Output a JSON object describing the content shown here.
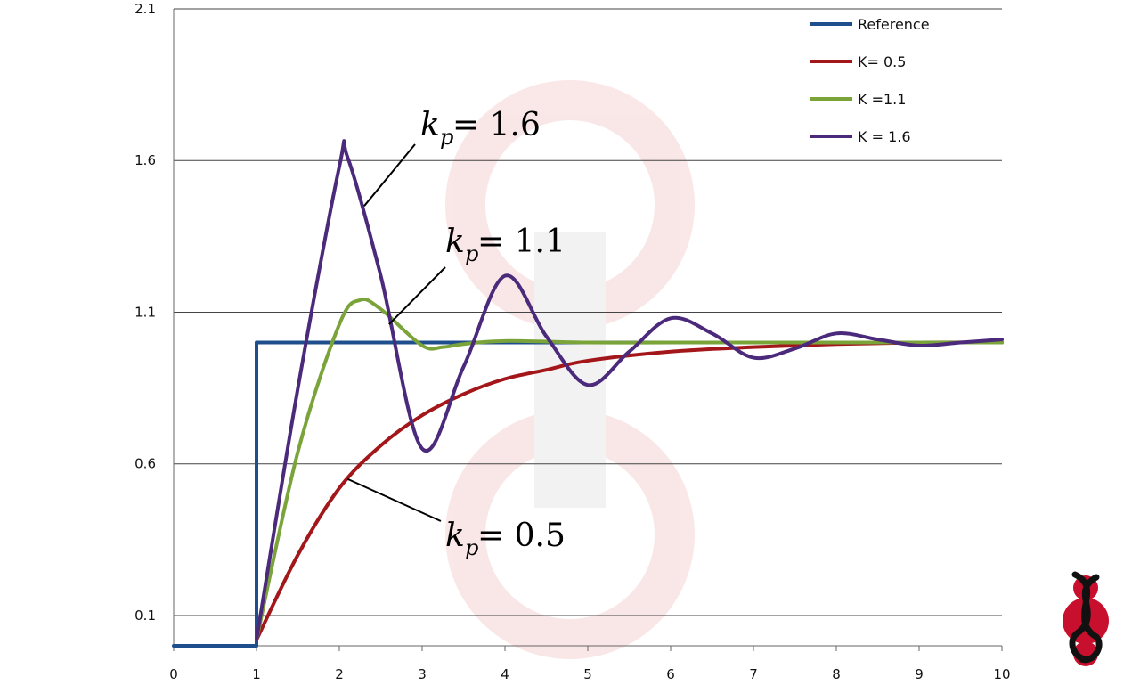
{
  "chart_data": {
    "type": "line",
    "title": "",
    "xlabel": "",
    "ylabel": "",
    "xlim": [
      0,
      10
    ],
    "ylim": [
      0,
      2.1
    ],
    "x_ticks": [
      0,
      1,
      2,
      3,
      4,
      5,
      6,
      7,
      8,
      9,
      10
    ],
    "y_ticks": [
      0.1,
      0.6,
      1.1,
      1.6,
      2.1
    ],
    "grid": "horizontal",
    "legend_position": "top-right",
    "series": [
      {
        "name": "Reference",
        "color": "#1f4e8c",
        "x": [
          0,
          1,
          1,
          10
        ],
        "y": [
          0,
          0,
          1,
          1
        ]
      },
      {
        "name": "K= 0.5",
        "color": "#a3171b",
        "x": [
          1,
          1.5,
          2,
          2.5,
          3,
          3.5,
          4,
          4.5,
          5,
          6,
          7,
          8,
          9,
          10
        ],
        "y": [
          0.02,
          0.3,
          0.52,
          0.66,
          0.76,
          0.83,
          0.88,
          0.91,
          0.94,
          0.97,
          0.985,
          0.995,
          1.0,
          1.0
        ]
      },
      {
        "name": "K =1.1",
        "color": "#7aa43a",
        "x": [
          1,
          1.5,
          2,
          2.25,
          2.5,
          3,
          3.25,
          3.5,
          4,
          5,
          6,
          7,
          8,
          9,
          10
        ],
        "y": [
          0.02,
          0.64,
          1.06,
          1.14,
          1.11,
          0.99,
          0.985,
          0.995,
          1.005,
          1.0,
          1.0,
          1.0,
          1.0,
          1.0,
          1.0
        ]
      },
      {
        "name": "K = 1.6",
        "color": "#4b2a7b",
        "x": [
          1,
          1.5,
          2,
          2.1,
          2.5,
          3,
          3.5,
          4,
          4.5,
          5,
          5.5,
          6,
          6.5,
          7,
          7.5,
          8,
          8.5,
          9,
          9.5,
          10
        ],
        "y": [
          0.02,
          0.85,
          1.58,
          1.61,
          1.22,
          0.65,
          0.92,
          1.22,
          1.02,
          0.86,
          0.97,
          1.08,
          1.03,
          0.95,
          0.98,
          1.03,
          1.01,
          0.99,
          1.0,
          1.01
        ]
      }
    ],
    "annotations": [
      {
        "base": "k",
        "sub": "p",
        "rest": " = 1.6",
        "points_to": {
          "x": 2.3,
          "y": 1.45
        }
      },
      {
        "base": "k",
        "sub": "p",
        "rest": " = 1.1",
        "points_to": {
          "x": 2.6,
          "y": 1.06
        }
      },
      {
        "base": "k",
        "sub": "p",
        "rest": " = 0.5",
        "points_to": {
          "x": 2.1,
          "y": 0.55
        }
      }
    ]
  }
}
